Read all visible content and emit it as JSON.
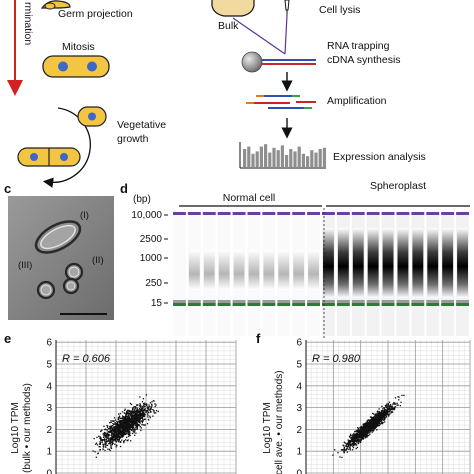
{
  "panel_a": {
    "germination_label": "rmination",
    "germ_projection": "Germ projection",
    "mitosis": "Mitosis",
    "vegetative_growth_line1": "Vegetative",
    "vegetative_growth_line2": "growth"
  },
  "panel_b": {
    "bulk": "Bulk",
    "cell_lysis": "Cell lysis",
    "rna_trapping_line1": "RNA trapping",
    "rna_trapping_line2": "cDNA synthesis",
    "amplification": "Amplification",
    "expression_analysis": "Expression analysis",
    "expression_bars": [
      30,
      34,
      22,
      26,
      34,
      38,
      24,
      32,
      28,
      36,
      20,
      30,
      26,
      34,
      22,
      18,
      28,
      24,
      30,
      32
    ]
  },
  "panel_c": {
    "letter": "c",
    "label_i": "(I)",
    "label_ii": "(II)",
    "label_iii": "(III)"
  },
  "panel_d": {
    "letter": "d",
    "unit": "(bp)",
    "group_normal": "Normal cell",
    "group_spheroplast": "Spheroplast",
    "ladder": [
      "10,000",
      "2500",
      "1000",
      "250",
      "15"
    ],
    "colors": {
      "upper_marker": "#6a3fa5",
      "lower_marker": "#2f7a3a"
    }
  },
  "panel_e": {
    "letter": "e",
    "r_value": "R = 0.606",
    "ylabel_line1": "Log10 TPM",
    "ylabel_line2": "(bulk • our methods)",
    "yticks": [
      "6",
      "5",
      "4",
      "3",
      "2",
      "1",
      "0"
    ]
  },
  "panel_f": {
    "letter": "f",
    "r_value": "R = 0.980",
    "ylabel_line1": "Log10 TPM",
    "ylabel_line2": "le cell ave. • our methods)",
    "yticks": [
      "6",
      "5",
      "4",
      "3",
      "2",
      "1",
      "0"
    ]
  }
}
